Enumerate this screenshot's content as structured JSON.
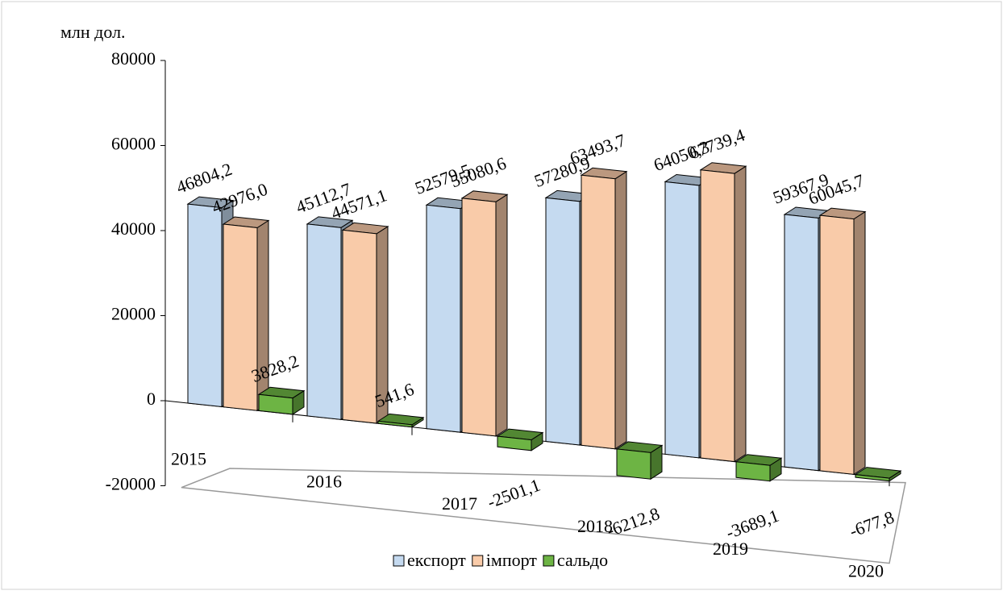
{
  "chart_data": {
    "type": "bar3d",
    "y_label": "млн дол.",
    "categories": [
      "2015",
      "2016",
      "2017",
      "2018",
      "2019",
      "2020"
    ],
    "series": [
      {
        "name": "експорт",
        "color": "#c5daf0",
        "values": [
          46804.2,
          45112.7,
          52579.5,
          57280.9,
          64050.3,
          59367.9
        ],
        "value_labels": [
          "46804,2",
          "45112,7",
          "52579,5",
          "57280,9",
          "64050,3",
          "59367,9"
        ]
      },
      {
        "name": "імпорт",
        "color": "#f9cba9",
        "values": [
          42976.0,
          44571.1,
          55080.6,
          63493.7,
          67739.4,
          60045.7
        ],
        "value_labels": [
          "42976,0",
          "44571,1",
          "55080,6",
          "63493,7",
          "67739,4",
          "60045,7"
        ]
      },
      {
        "name": "сальдо",
        "color": "#6db444",
        "values": [
          3828.2,
          541.6,
          -2501.1,
          -6212.8,
          -3689.1,
          -677.8
        ],
        "value_labels": [
          "3828,2",
          "541,6",
          "-2501,1",
          "-6212,8",
          "-3689,1",
          "-677,8"
        ]
      }
    ],
    "ylim": [
      -20000,
      80000
    ],
    "yticks": [
      -20000,
      0,
      20000,
      40000,
      60000,
      80000
    ],
    "legend": "bottom"
  }
}
